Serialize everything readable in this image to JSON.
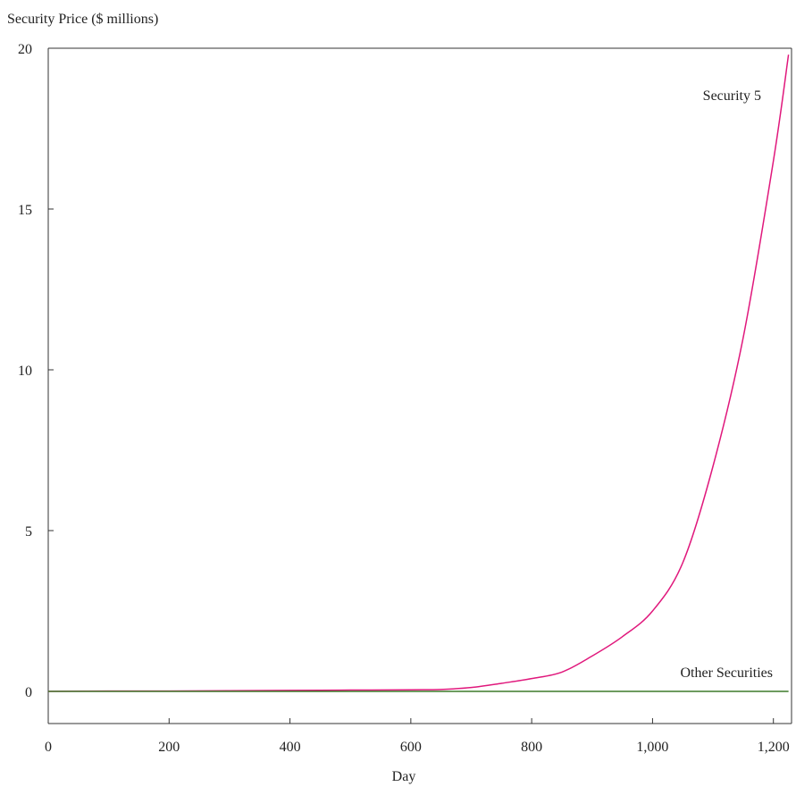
{
  "chart_data": {
    "type": "line",
    "ylabel": "Security Price ($ millions)",
    "xlabel": "Day",
    "xlim": [
      0,
      1230
    ],
    "ylim": [
      -1,
      20
    ],
    "x_ticks": [
      0,
      200,
      400,
      600,
      800,
      1000,
      1200
    ],
    "x_tick_labels": [
      "0",
      "200",
      "400",
      "600",
      "800",
      "1,000",
      "1,200"
    ],
    "y_ticks": [
      0,
      5,
      10,
      15,
      20
    ],
    "y_tick_labels": [
      "0",
      "5",
      "10",
      "15",
      "20"
    ],
    "grid": false,
    "series": [
      {
        "name": "Security 5",
        "color": "#e0187c",
        "x": [
          0,
          100,
          200,
          300,
          400,
          500,
          600,
          650,
          700,
          750,
          800,
          850,
          900,
          950,
          1000,
          1050,
          1100,
          1150,
          1200,
          1225
        ],
        "values": [
          0,
          0.01,
          0.01,
          0.02,
          0.03,
          0.04,
          0.05,
          0.06,
          0.12,
          0.25,
          0.4,
          0.6,
          1.1,
          1.7,
          2.5,
          4.0,
          7.0,
          11.0,
          16.5,
          19.8
        ]
      },
      {
        "name": "Other Securities",
        "color": "#3d7a2a",
        "x": [
          0,
          1225
        ],
        "values": [
          0,
          0
        ]
      }
    ]
  }
}
